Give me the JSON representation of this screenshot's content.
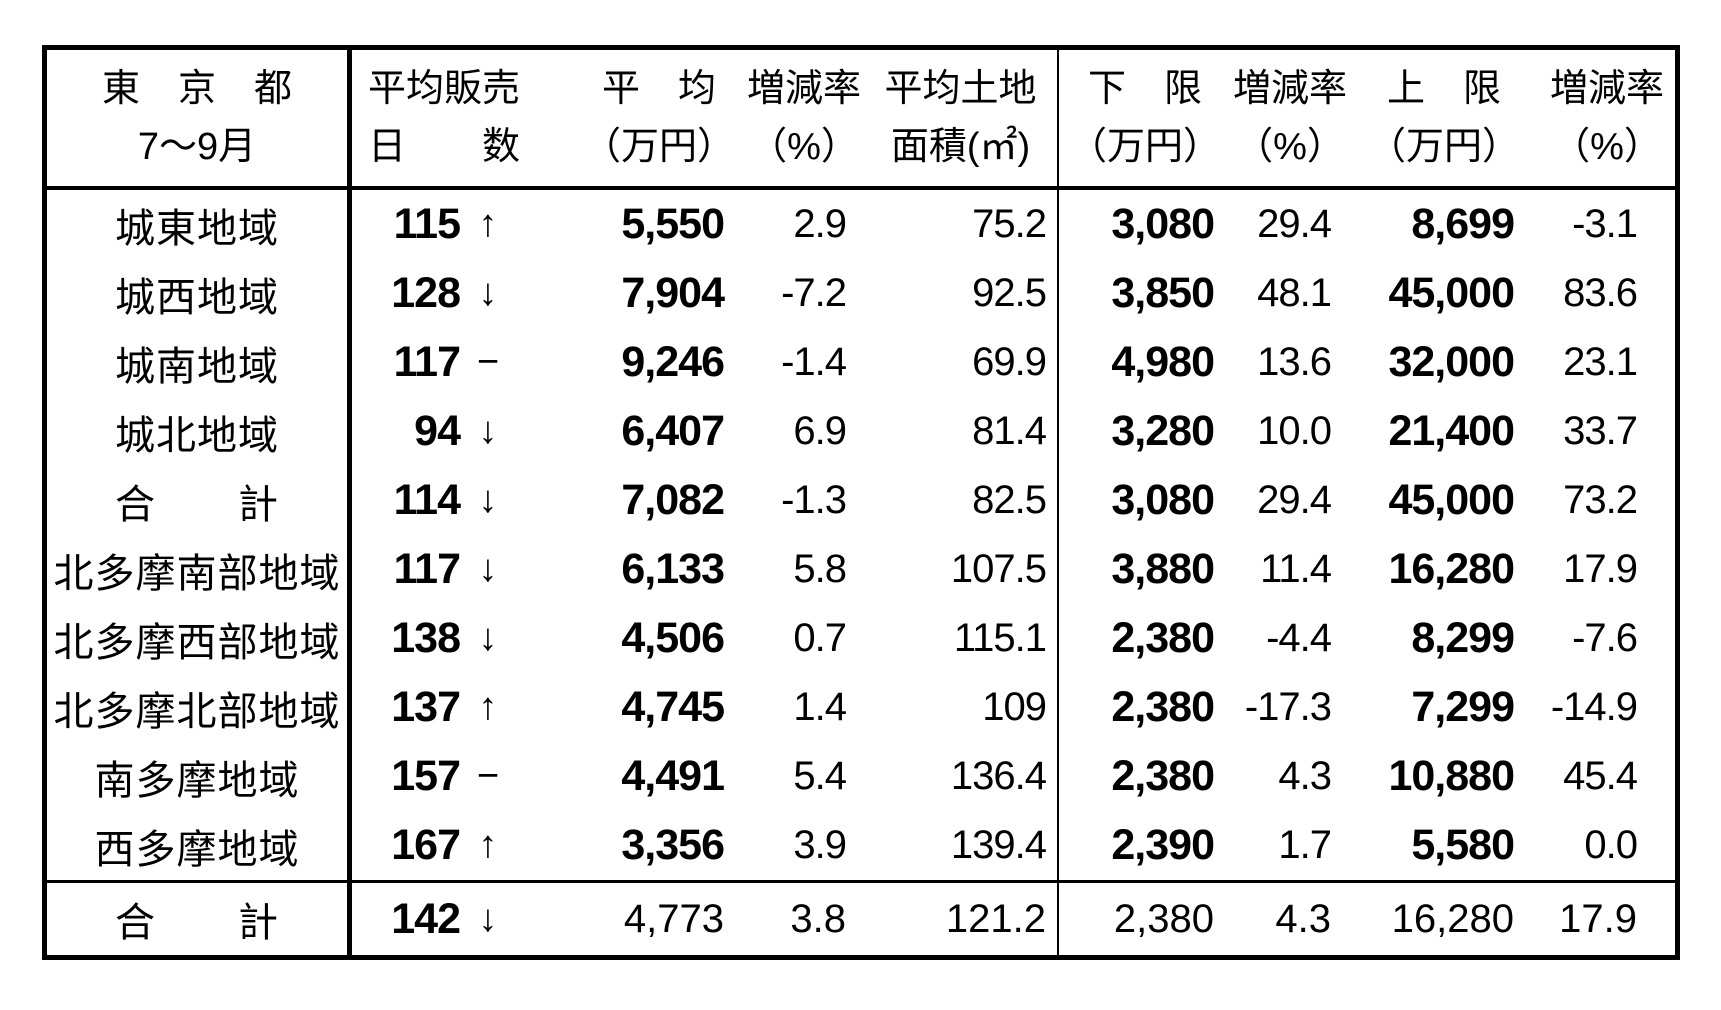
{
  "page": {
    "background": "#ffffff",
    "text_color": "#000000",
    "border_color": "#000000"
  },
  "table": {
    "header": {
      "col_region": {
        "line1": "東　京　都",
        "line2": "7〜9月"
      },
      "col_days": {
        "line1": "平均販売",
        "line2": "日　　数"
      },
      "col_avg": {
        "line1": "平　均",
        "line2": "（万円）"
      },
      "col_rate1": {
        "line1": "増減率",
        "line2": "（%）"
      },
      "col_area": {
        "line1": "平均土地",
        "line2": "面積(㎡)"
      },
      "col_lower": {
        "line1": "下　限",
        "line2": "（万円）"
      },
      "col_rate2": {
        "line1": "増減率",
        "line2": "（%）"
      },
      "col_upper": {
        "line1": "上　限",
        "line2": "（万円）"
      },
      "col_rate3": {
        "line1": "増減率",
        "line2": "（%）"
      }
    },
    "rows": [
      {
        "region": "城東地域",
        "days": "115",
        "trend": "↑",
        "avg": "5,550",
        "rate1": "2.9",
        "area": "75.2",
        "lower": "3,080",
        "rate2": "29.4",
        "upper": "8,699",
        "rate3": "-3.1"
      },
      {
        "region": "城西地域",
        "days": "128",
        "trend": "↓",
        "avg": "7,904",
        "rate1": "-7.2",
        "area": "92.5",
        "lower": "3,850",
        "rate2": "48.1",
        "upper": "45,000",
        "rate3": "83.6"
      },
      {
        "region": "城南地域",
        "days": "117",
        "trend": "−",
        "avg": "9,246",
        "rate1": "-1.4",
        "area": "69.9",
        "lower": "4,980",
        "rate2": "13.6",
        "upper": "32,000",
        "rate3": "23.1"
      },
      {
        "region": "城北地域",
        "days": "94",
        "trend": "↓",
        "avg": "6,407",
        "rate1": "6.9",
        "area": "81.4",
        "lower": "3,280",
        "rate2": "10.0",
        "upper": "21,400",
        "rate3": "33.7"
      },
      {
        "region": "合　　計",
        "days": "114",
        "trend": "↓",
        "avg": "7,082",
        "rate1": "-1.3",
        "area": "82.5",
        "lower": "3,080",
        "rate2": "29.4",
        "upper": "45,000",
        "rate3": "73.2"
      },
      {
        "region": "北多摩南部地域",
        "days": "117",
        "trend": "↓",
        "avg": "6,133",
        "rate1": "5.8",
        "area": "107.5",
        "lower": "3,880",
        "rate2": "11.4",
        "upper": "16,280",
        "rate3": "17.9"
      },
      {
        "region": "北多摩西部地域",
        "days": "138",
        "trend": "↓",
        "avg": "4,506",
        "rate1": "0.7",
        "area": "115.1",
        "lower": "2,380",
        "rate2": "-4.4",
        "upper": "8,299",
        "rate3": "-7.6"
      },
      {
        "region": "北多摩北部地域",
        "days": "137",
        "trend": "↑",
        "avg": "4,745",
        "rate1": "1.4",
        "area": "109",
        "lower": "2,380",
        "rate2": "-17.3",
        "upper": "7,299",
        "rate3": "-14.9"
      },
      {
        "region": "南多摩地域",
        "days": "157",
        "trend": "−",
        "avg": "4,491",
        "rate1": "5.4",
        "area": "136.4",
        "lower": "2,380",
        "rate2": "4.3",
        "upper": "10,880",
        "rate3": "45.4"
      },
      {
        "region": "西多摩地域",
        "days": "167",
        "trend": "↑",
        "avg": "3,356",
        "rate1": "3.9",
        "area": "139.4",
        "lower": "2,390",
        "rate2": "1.7",
        "upper": "5,580",
        "rate3": "0.0"
      }
    ],
    "total_row": {
      "region": "合　　計",
      "days": "142",
      "trend": "↓",
      "avg": "4,773",
      "rate1": "3.8",
      "area": "121.2",
      "lower": "2,380",
      "rate2": "4.3",
      "upper": "16,280",
      "rate3": "17.9"
    }
  }
}
